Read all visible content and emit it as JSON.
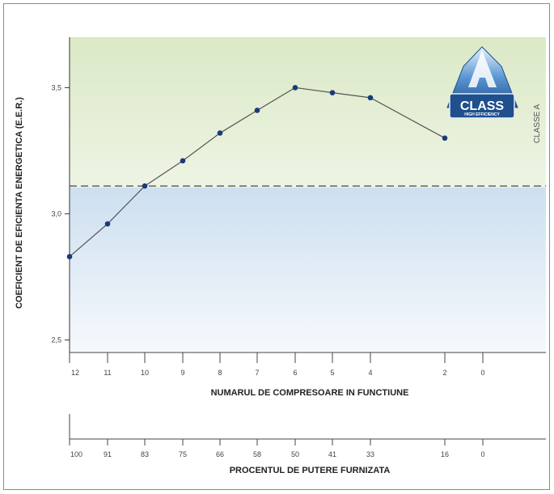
{
  "chart_data": {
    "type": "line",
    "ylabel": "COEFICIENT DE EFICIENTA ENERGETICA (E.E.R.)",
    "ylim": [
      2.45,
      3.7
    ],
    "y_ticks": [
      "3,5",
      "3,0",
      "2,5"
    ],
    "y_tick_values": [
      3.5,
      3.0,
      2.5
    ],
    "threshold": 3.11,
    "band_label": "CLASSE A",
    "axis1": {
      "title": "NUMARUL DE COMPRESOARE IN FUNCTIUNE",
      "ticks": [
        "12",
        "11",
        "10",
        "9",
        "8",
        "7",
        "6",
        "5",
        "4",
        "2",
        "0"
      ]
    },
    "axis2": {
      "title": "PROCENTUL DE PUTERE FURNIZATA",
      "ticks": [
        "100",
        "91",
        "83",
        "75",
        "66",
        "58",
        "50",
        "41",
        "33",
        "16",
        "0"
      ]
    },
    "series": [
      {
        "x": [
          "12",
          "11",
          "10",
          "9",
          "8",
          "7",
          "6",
          "5",
          "4",
          "2"
        ],
        "values": [
          2.83,
          2.96,
          3.11,
          3.21,
          3.32,
          3.41,
          3.5,
          3.48,
          3.46,
          3.3
        ]
      }
    ]
  },
  "logo": {
    "letter": "A",
    "word": "CLASS",
    "tagline": "HIGH EFFICIENCY"
  },
  "colors": {
    "green_band": "#e6efd6",
    "blue_band": "#d4e3f2",
    "line": "#555555",
    "point": "#1a3a7a",
    "logo": "#2f6fb5"
  }
}
